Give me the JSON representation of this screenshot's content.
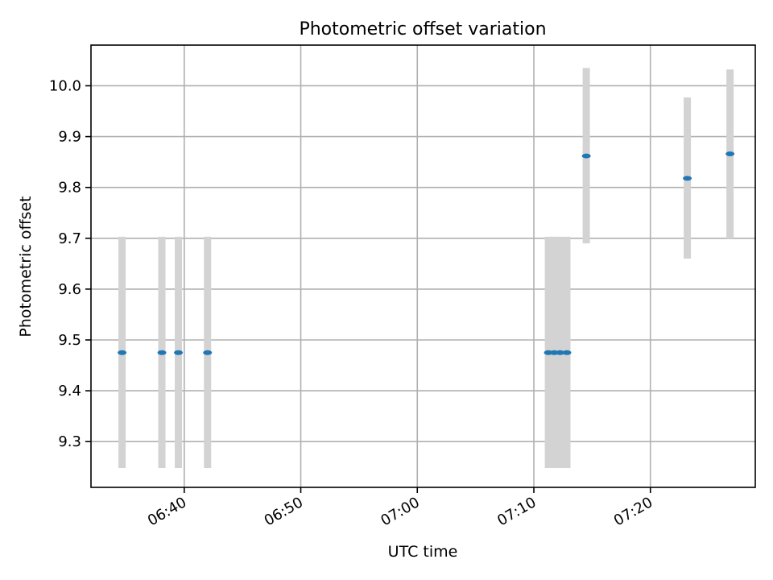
{
  "chart_data": {
    "type": "scatter",
    "title": "Photometric offset variation",
    "xlabel": "UTC time",
    "ylabel": "Photometric offset",
    "xlim": [
      "06:32",
      "07:29"
    ],
    "ylim": [
      9.21,
      10.08
    ],
    "x_ticks": [
      "06:40",
      "06:50",
      "07:00",
      "07:10",
      "07:20"
    ],
    "y_ticks": [
      "9.3",
      "9.4",
      "9.5",
      "9.6",
      "9.7",
      "9.8",
      "9.9",
      "10.0"
    ],
    "grid": true,
    "point_color": "#1f77b4",
    "errorbar_color": "#d3d3d3",
    "points": [
      {
        "x": "06:34:40",
        "y": 9.475,
        "err_low": 9.248,
        "err_high": 9.703
      },
      {
        "x": "06:38:05",
        "y": 9.475,
        "err_low": 9.248,
        "err_high": 9.703
      },
      {
        "x": "06:39:30",
        "y": 9.475,
        "err_low": 9.248,
        "err_high": 9.703
      },
      {
        "x": "06:42:00",
        "y": 9.475,
        "err_low": 9.248,
        "err_high": 9.703
      },
      {
        "x": "07:11:15",
        "y": 9.475,
        "err_low": 9.248,
        "err_high": 9.703
      },
      {
        "x": "07:11:45",
        "y": 9.475,
        "err_low": 9.248,
        "err_high": 9.703
      },
      {
        "x": "07:12:15",
        "y": 9.475,
        "err_low": 9.248,
        "err_high": 9.703
      },
      {
        "x": "07:12:50",
        "y": 9.475,
        "err_low": 9.248,
        "err_high": 9.703
      },
      {
        "x": "07:14:30",
        "y": 9.862,
        "err_low": 9.69,
        "err_high": 10.035
      },
      {
        "x": "07:23:10",
        "y": 9.818,
        "err_low": 9.66,
        "err_high": 9.977
      },
      {
        "x": "07:26:50",
        "y": 9.866,
        "err_low": 9.7,
        "err_high": 10.032
      }
    ]
  }
}
